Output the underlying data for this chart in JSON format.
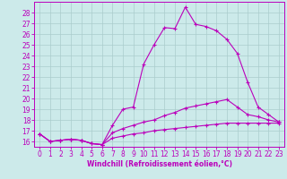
{
  "background_color": "#cceaea",
  "grid_color": "#aacccc",
  "line_color": "#bb00bb",
  "xlabel": "Windchill (Refroidissement éolien,°C)",
  "xlim": [
    -0.5,
    23.5
  ],
  "ylim": [
    15.5,
    29.0
  ],
  "yticks": [
    16,
    17,
    18,
    19,
    20,
    21,
    22,
    23,
    24,
    25,
    26,
    27,
    28
  ],
  "xticks": [
    0,
    1,
    2,
    3,
    4,
    5,
    6,
    7,
    8,
    9,
    10,
    11,
    12,
    13,
    14,
    15,
    16,
    17,
    18,
    19,
    20,
    21,
    22,
    23
  ],
  "line1_x": [
    0,
    1,
    2,
    3,
    4,
    5,
    6,
    7,
    8,
    9,
    10,
    11,
    12,
    13,
    14,
    15,
    16,
    17,
    18,
    19,
    20,
    21,
    22,
    23
  ],
  "line1_y": [
    16.7,
    16.0,
    16.1,
    16.2,
    16.1,
    15.8,
    15.7,
    17.5,
    19.0,
    19.2,
    23.2,
    25.0,
    26.6,
    26.5,
    28.5,
    26.9,
    26.7,
    26.3,
    25.5,
    24.2,
    21.5,
    19.2,
    18.5,
    17.8
  ],
  "line2_x": [
    0,
    1,
    2,
    3,
    4,
    5,
    6,
    7,
    8,
    9,
    10,
    11,
    12,
    13,
    14,
    15,
    16,
    17,
    18,
    19,
    20,
    21,
    22,
    23
  ],
  "line2_y": [
    16.7,
    16.0,
    16.1,
    16.2,
    16.1,
    15.8,
    15.7,
    16.8,
    17.2,
    17.5,
    17.8,
    18.0,
    18.4,
    18.7,
    19.1,
    19.3,
    19.5,
    19.7,
    19.9,
    19.2,
    18.5,
    18.3,
    18.0,
    17.8
  ],
  "line3_x": [
    0,
    1,
    2,
    3,
    4,
    5,
    6,
    7,
    8,
    9,
    10,
    11,
    12,
    13,
    14,
    15,
    16,
    17,
    18,
    19,
    20,
    21,
    22,
    23
  ],
  "line3_y": [
    16.7,
    16.0,
    16.1,
    16.2,
    16.1,
    15.8,
    15.7,
    16.3,
    16.5,
    16.7,
    16.8,
    17.0,
    17.1,
    17.2,
    17.3,
    17.4,
    17.5,
    17.6,
    17.7,
    17.7,
    17.7,
    17.7,
    17.7,
    17.7
  ],
  "tick_fontsize": 5.5,
  "xlabel_fontsize": 5.5
}
